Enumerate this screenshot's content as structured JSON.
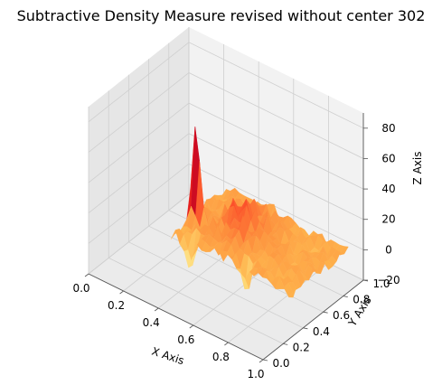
{
  "chart_data": {
    "type": "surface3d",
    "title": "Subtractive Density Measure revised without center 302",
    "xlabel": "X Axis",
    "ylabel": "Y Axis",
    "zlabel": "Z Axis",
    "xlim": [
      0,
      1
    ],
    "ylim": [
      0,
      1
    ],
    "zlim": [
      -20,
      90
    ],
    "x_ticks": [
      "0.0",
      "0.2",
      "0.4",
      "0.6",
      "0.8",
      "1.0"
    ],
    "y_ticks": [
      "0.0",
      "0.2",
      "0.4",
      "0.6",
      "0.8",
      "1.0"
    ],
    "z_ticks": [
      "−20",
      "0",
      "20",
      "40",
      "60",
      "80"
    ],
    "colormap": "YlOrRd",
    "grid": true,
    "surface_extent": {
      "x": [
        0.3,
        1.0
      ],
      "y": [
        0.3,
        0.85
      ]
    },
    "notable_points": [
      {
        "label": "peak",
        "x": 0.33,
        "y": 0.5,
        "z": 72
      },
      {
        "label": "dip",
        "x": 0.4,
        "y": 0.32,
        "z": -18
      },
      {
        "label": "dip",
        "x": 0.71,
        "y": 0.33,
        "z": -12
      }
    ]
  }
}
